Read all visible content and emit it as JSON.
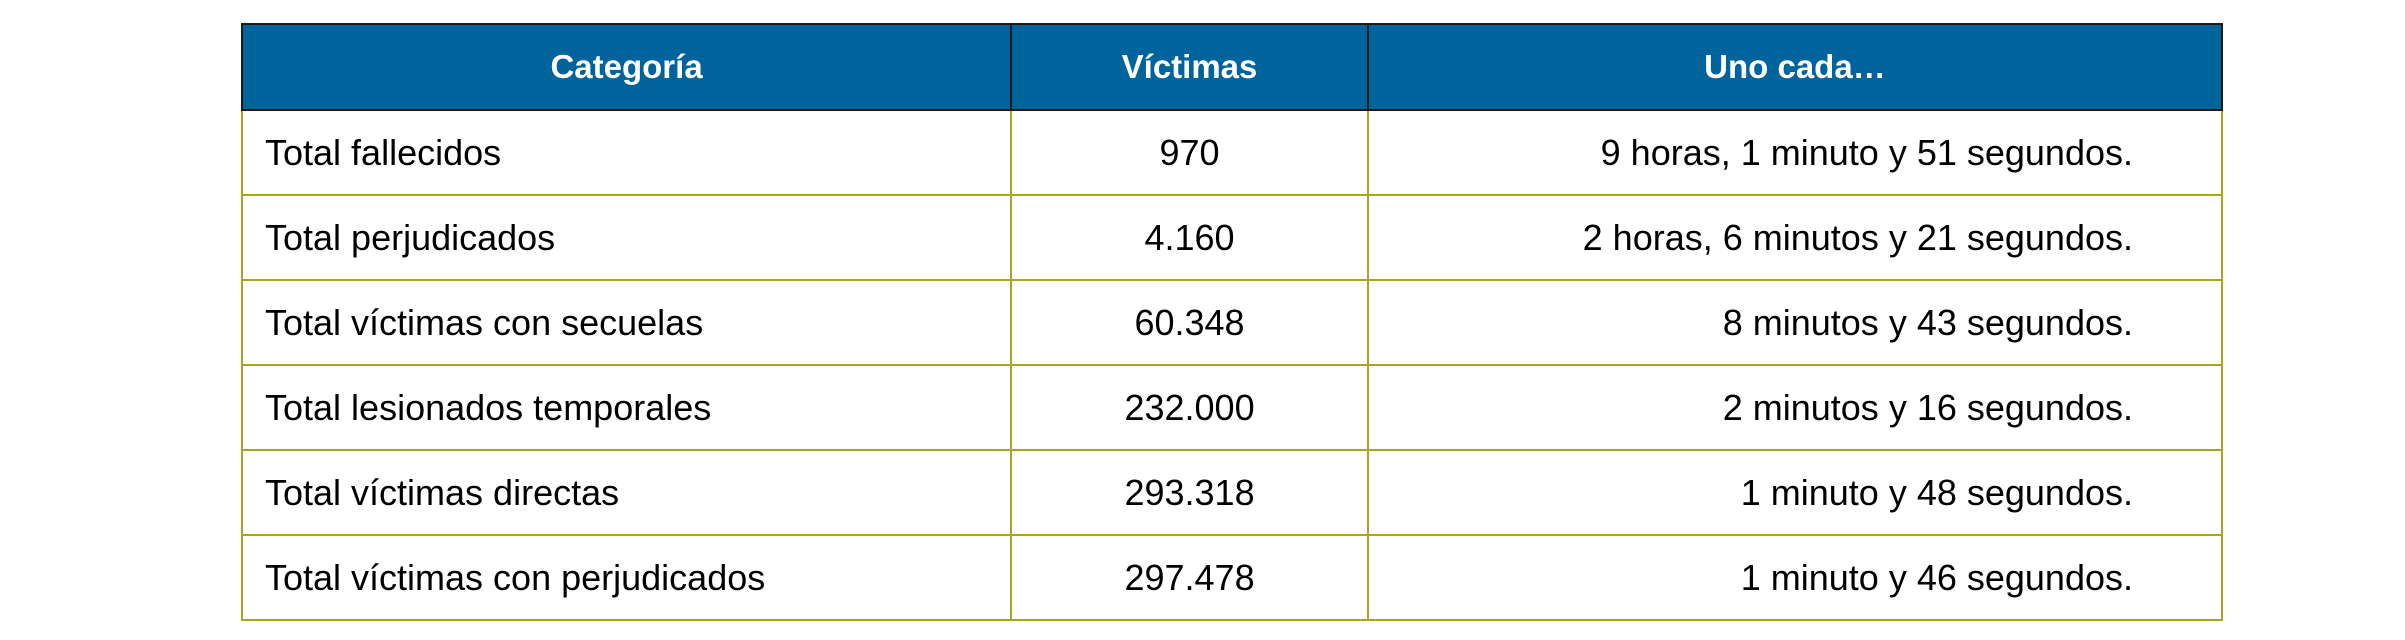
{
  "table": {
    "headers": [
      "Categoría",
      "Víctimas",
      "Uno cada…"
    ],
    "rows": [
      [
        "Total fallecidos",
        "970",
        "9 horas, 1 minuto y 51 segundos."
      ],
      [
        "Total perjudicados",
        "4.160",
        "2 horas, 6 minutos y 21 segundos."
      ],
      [
        "Total víctimas con secuelas",
        "60.348",
        "8 minutos y 43 segundos."
      ],
      [
        "Total lesionados temporales",
        "232.000",
        "2 minutos y 16 segundos."
      ],
      [
        "Total víctimas directas",
        "293.318",
        "1 minuto y 48 segundos."
      ],
      [
        "Total víctimas con perjudicados",
        "297.478",
        "1 minuto y 46 segundos."
      ]
    ]
  },
  "colors": {
    "header_bg": "#00649c",
    "grid": "#a9a61c"
  }
}
